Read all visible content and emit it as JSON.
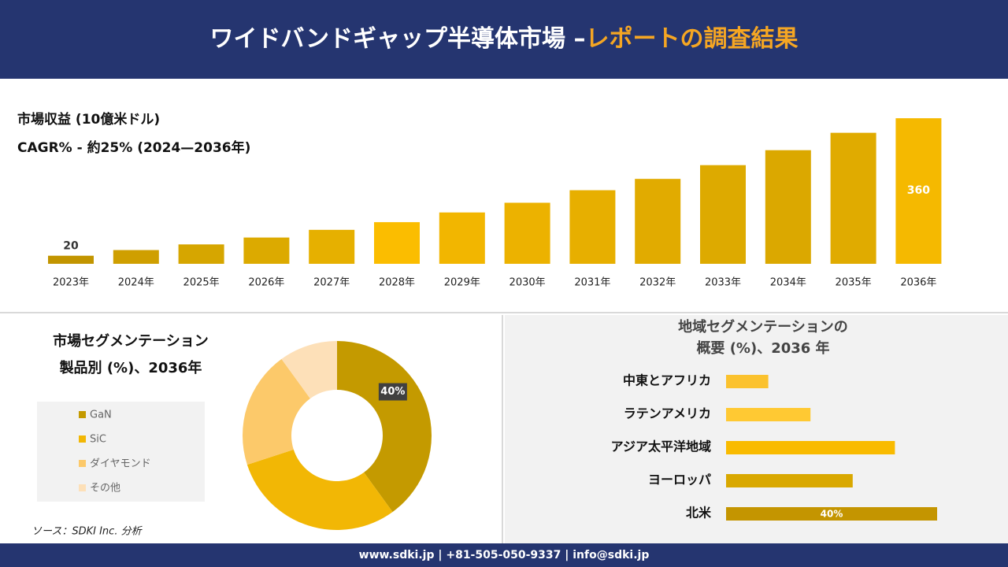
{
  "header": {
    "title": "ワイドバンドギャップ半導体市場 –",
    "title_highlight": "レポートの調査結果"
  },
  "chart_data": [
    {
      "type": "bar",
      "title": "市場収益 (10億米ドル)",
      "subtitle": "CAGR% - 約25% (2024—2036年)",
      "categories": [
        "2023年",
        "2024年",
        "2025年",
        "2026年",
        "2027年",
        "2028年",
        "2029年",
        "2030年",
        "2031年",
        "2032年",
        "2033年",
        "2034年",
        "2035年",
        "2036年"
      ],
      "values": [
        20,
        34,
        48,
        65,
        84,
        103,
        127,
        151,
        182,
        210,
        244,
        281,
        324,
        360
      ],
      "value_labels": [
        "20",
        null,
        null,
        null,
        null,
        null,
        null,
        null,
        null,
        null,
        null,
        null,
        null,
        "360"
      ],
      "colors": [
        "#c29500",
        "#cf9f00",
        "#d6a600",
        "#dcaa00",
        "#e6b000",
        "#fbbd00",
        "#f2b600",
        "#ecb200",
        "#e7af00",
        "#e1ab00",
        "#ddaa00",
        "#dba800",
        "#e0ab00",
        "#f5b900"
      ],
      "ylim": [
        0,
        370
      ]
    },
    {
      "type": "donut",
      "title": [
        "市場セグメンテーション",
        "製品別 (%)、2036年"
      ],
      "categories": [
        "GaN",
        "SiC",
        "ダイヤモンド",
        "その他"
      ],
      "values": [
        40,
        30,
        20,
        10
      ],
      "value_labels": [
        "40%",
        null,
        null,
        null
      ],
      "colors": [
        "#c49a00",
        "#f2b705",
        "#fcc96a",
        "#fde0b8"
      ]
    },
    {
      "type": "hbar",
      "title": [
        "地域セグメンテーションの",
        "概要 (%)、2036 年"
      ],
      "categories": [
        "中東とアフリカ",
        "ラテンアメリカ",
        "アジア太平洋地域",
        "ヨーロッパ",
        "北米"
      ],
      "values": [
        8,
        16,
        32,
        24,
        40
      ],
      "value_labels": [
        null,
        null,
        null,
        null,
        "40%"
      ],
      "colors": [
        "#fbc22e",
        "#ffc933",
        "#f9bb00",
        "#d9a800",
        "#c49500"
      ],
      "xlim": [
        0,
        40
      ]
    }
  ],
  "source": "ソース：SDKI Inc. 分析",
  "footer": "www.sdki.jp | +81-505-050-9337 | info@sdki.jp"
}
